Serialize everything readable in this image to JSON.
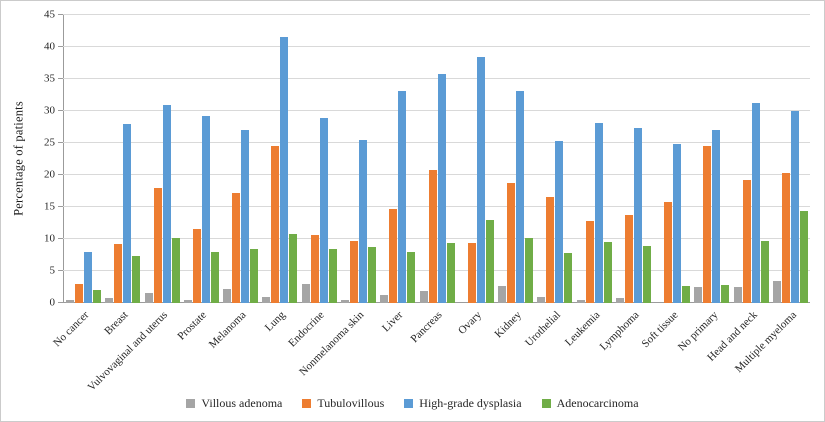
{
  "chart_data": {
    "type": "bar",
    "title": "",
    "xlabel": "",
    "ylabel": "Percentage of patients",
    "ylim": [
      0,
      45
    ],
    "ytick_step": 5,
    "grid": true,
    "legend_position": "bottom",
    "categories": [
      "No cancer",
      "Breast",
      "Vulvovaginal and uterus",
      "Prostate",
      "Melanoma",
      "Lung",
      "Endocrine",
      "Nonmelanoma skin",
      "Liver",
      "Pancreas",
      "Ovary",
      "Kidney",
      "Urothelial",
      "Leukemia",
      "Lymphoma",
      "Soft tissue",
      "No primary",
      "Head and neck",
      "Multiple myeloma"
    ],
    "series": [
      {
        "name": "Villous adenoma",
        "color": "#a5a5a5",
        "values": [
          0.5,
          0.8,
          1.5,
          0.5,
          2.2,
          1.0,
          3.0,
          0.5,
          1.3,
          1.8,
          0.0,
          2.7,
          1.0,
          0.5,
          0.8,
          0.0,
          2.5,
          2.5,
          3.5
        ]
      },
      {
        "name": "Tubulovillous",
        "color": "#ed7d31",
        "values": [
          3.0,
          9.2,
          18.0,
          11.5,
          17.2,
          24.5,
          10.7,
          9.7,
          14.7,
          20.8,
          9.3,
          18.8,
          16.5,
          12.8,
          13.7,
          15.8,
          24.5,
          19.2,
          20.3
        ]
      },
      {
        "name": "High-grade dysplasia",
        "color": "#5b9bd5",
        "values": [
          7.9,
          27.9,
          30.9,
          29.2,
          27.1,
          41.5,
          28.9,
          25.4,
          33.2,
          35.8,
          38.4,
          33.2,
          25.3,
          28.1,
          27.4,
          24.8,
          27.0,
          31.3,
          30.0
        ]
      },
      {
        "name": "Adenocarcinoma",
        "color": "#70ad47",
        "values": [
          2.0,
          7.4,
          10.1,
          7.9,
          8.4,
          10.8,
          8.4,
          8.7,
          8.0,
          9.4,
          12.9,
          10.2,
          7.8,
          9.6,
          8.9,
          2.7,
          2.8,
          9.7,
          14.3
        ]
      }
    ]
  }
}
